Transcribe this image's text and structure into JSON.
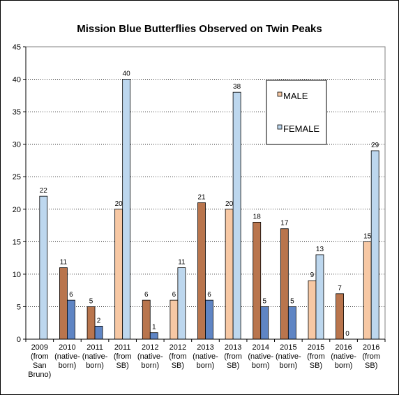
{
  "chart_data": {
    "type": "bar",
    "title": "Mission Blue Butterflies Observed on Twin Peaks",
    "xlabel": "",
    "ylabel": "",
    "ylim": [
      0,
      45
    ],
    "yticks": [
      0,
      5,
      10,
      15,
      20,
      25,
      30,
      35,
      40,
      45
    ],
    "grid": "horizontal dotted",
    "legend_position": "top-right",
    "categories": [
      [
        "2009",
        "(from",
        "San",
        "Bruno)"
      ],
      [
        "2010",
        "(native-",
        "born)"
      ],
      [
        "2011",
        "(native-",
        "born)"
      ],
      [
        "2011",
        "(from",
        "SB)"
      ],
      [
        "2012",
        "(native-",
        "born)"
      ],
      [
        "2012",
        "(from",
        "SB)"
      ],
      [
        "2013",
        "(native-",
        "born)"
      ],
      [
        "2013",
        "(from",
        "SB)"
      ],
      [
        "2014",
        "(native-",
        "born)"
      ],
      [
        "2015",
        "(native-",
        "born)"
      ],
      [
        "2015",
        "(from",
        "SB)"
      ],
      [
        "2016",
        "(native-",
        "born)"
      ],
      [
        "2016",
        "(from",
        "SB)"
      ]
    ],
    "series": [
      {
        "name": "MALE",
        "values": [
          null,
          11,
          5,
          20,
          6,
          6,
          21,
          20,
          18,
          17,
          9,
          7,
          15
        ],
        "colors": [
          "#b9754d",
          "#b9754d",
          "#b9754d",
          "#f7c8a4",
          "#b9754d",
          "#f7c8a4",
          "#b9754d",
          "#f7c8a4",
          "#b9754d",
          "#b9754d",
          "#f7c8a4",
          "#b9754d",
          "#f7c8a4"
        ]
      },
      {
        "name": "FEMALE",
        "values": [
          22,
          6,
          2,
          40,
          1,
          11,
          6,
          38,
          5,
          5,
          13,
          0,
          29
        ],
        "colors": [
          "#bdd7ee",
          "#5f85c4",
          "#5f85c4",
          "#bdd7ee",
          "#5f85c4",
          "#bdd7ee",
          "#5f85c4",
          "#bdd7ee",
          "#5f85c4",
          "#5f85c4",
          "#bdd7ee",
          "#5f85c4",
          "#bdd7ee"
        ]
      }
    ],
    "legend_colors": {
      "MALE": "#f7c8a4",
      "FEMALE": "#bdd7ee"
    }
  }
}
